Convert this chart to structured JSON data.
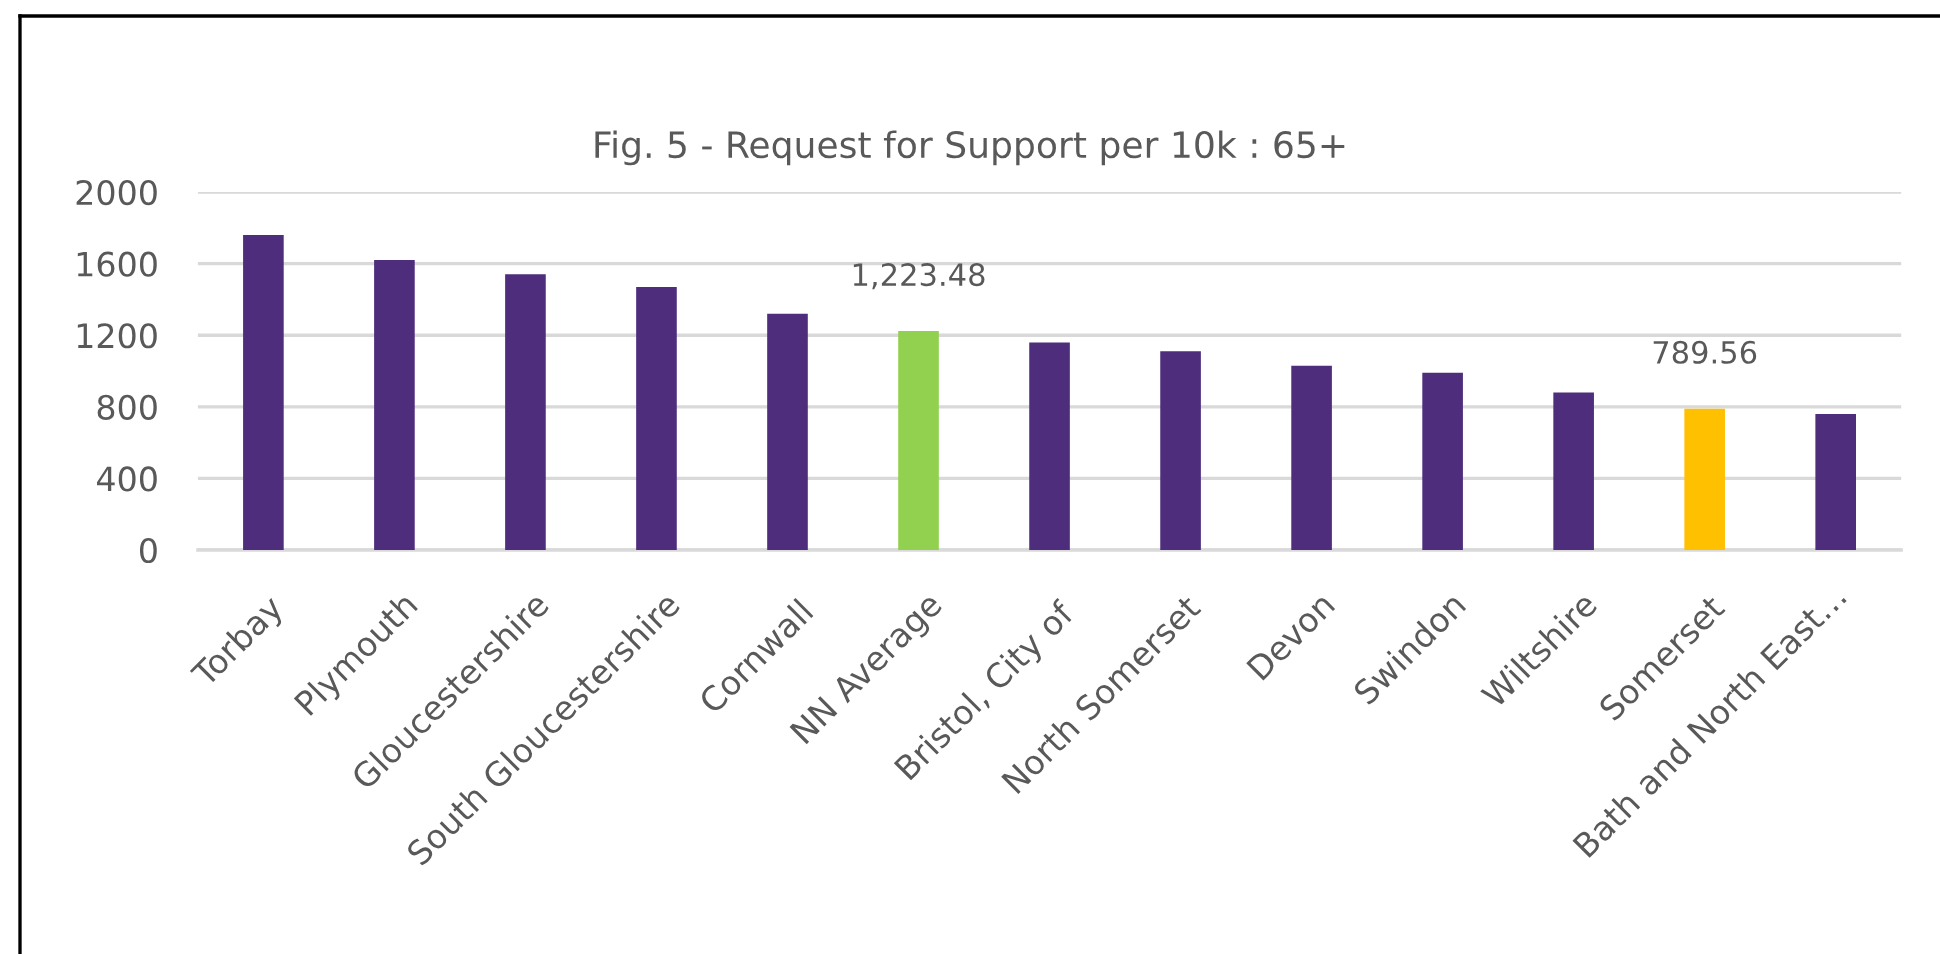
{
  "chart_data": {
    "type": "bar",
    "title": "Fig. 5 - Request for Support per 10k : 65+",
    "categories": [
      "Torbay",
      "Plymouth",
      "Gloucestershire",
      "South Gloucestershire",
      "Cornwall",
      "NN Average",
      "Bristol, City of",
      "North Somerset",
      "Devon",
      "Swindon",
      "Wiltshire",
      "Somerset",
      "Bath and North East…"
    ],
    "values": [
      1760,
      1620,
      1540,
      1470,
      1320,
      1223.48,
      1160,
      1110,
      1030,
      990,
      880,
      789.56,
      760
    ],
    "colors": [
      "#4e2d7c",
      "#4e2d7c",
      "#4e2d7c",
      "#4e2d7c",
      "#4e2d7c",
      "#92d050",
      "#4e2d7c",
      "#4e2d7c",
      "#4e2d7c",
      "#4e2d7c",
      "#4e2d7c",
      "#ffc000",
      "#4e2d7c"
    ],
    "value_labels": [
      null,
      null,
      null,
      null,
      null,
      "1,223.48",
      null,
      null,
      null,
      null,
      null,
      "789.56",
      null
    ],
    "ylim": [
      0,
      2000
    ],
    "yticks": [
      0,
      400,
      800,
      1200,
      1600,
      2000
    ],
    "grid": "y"
  }
}
